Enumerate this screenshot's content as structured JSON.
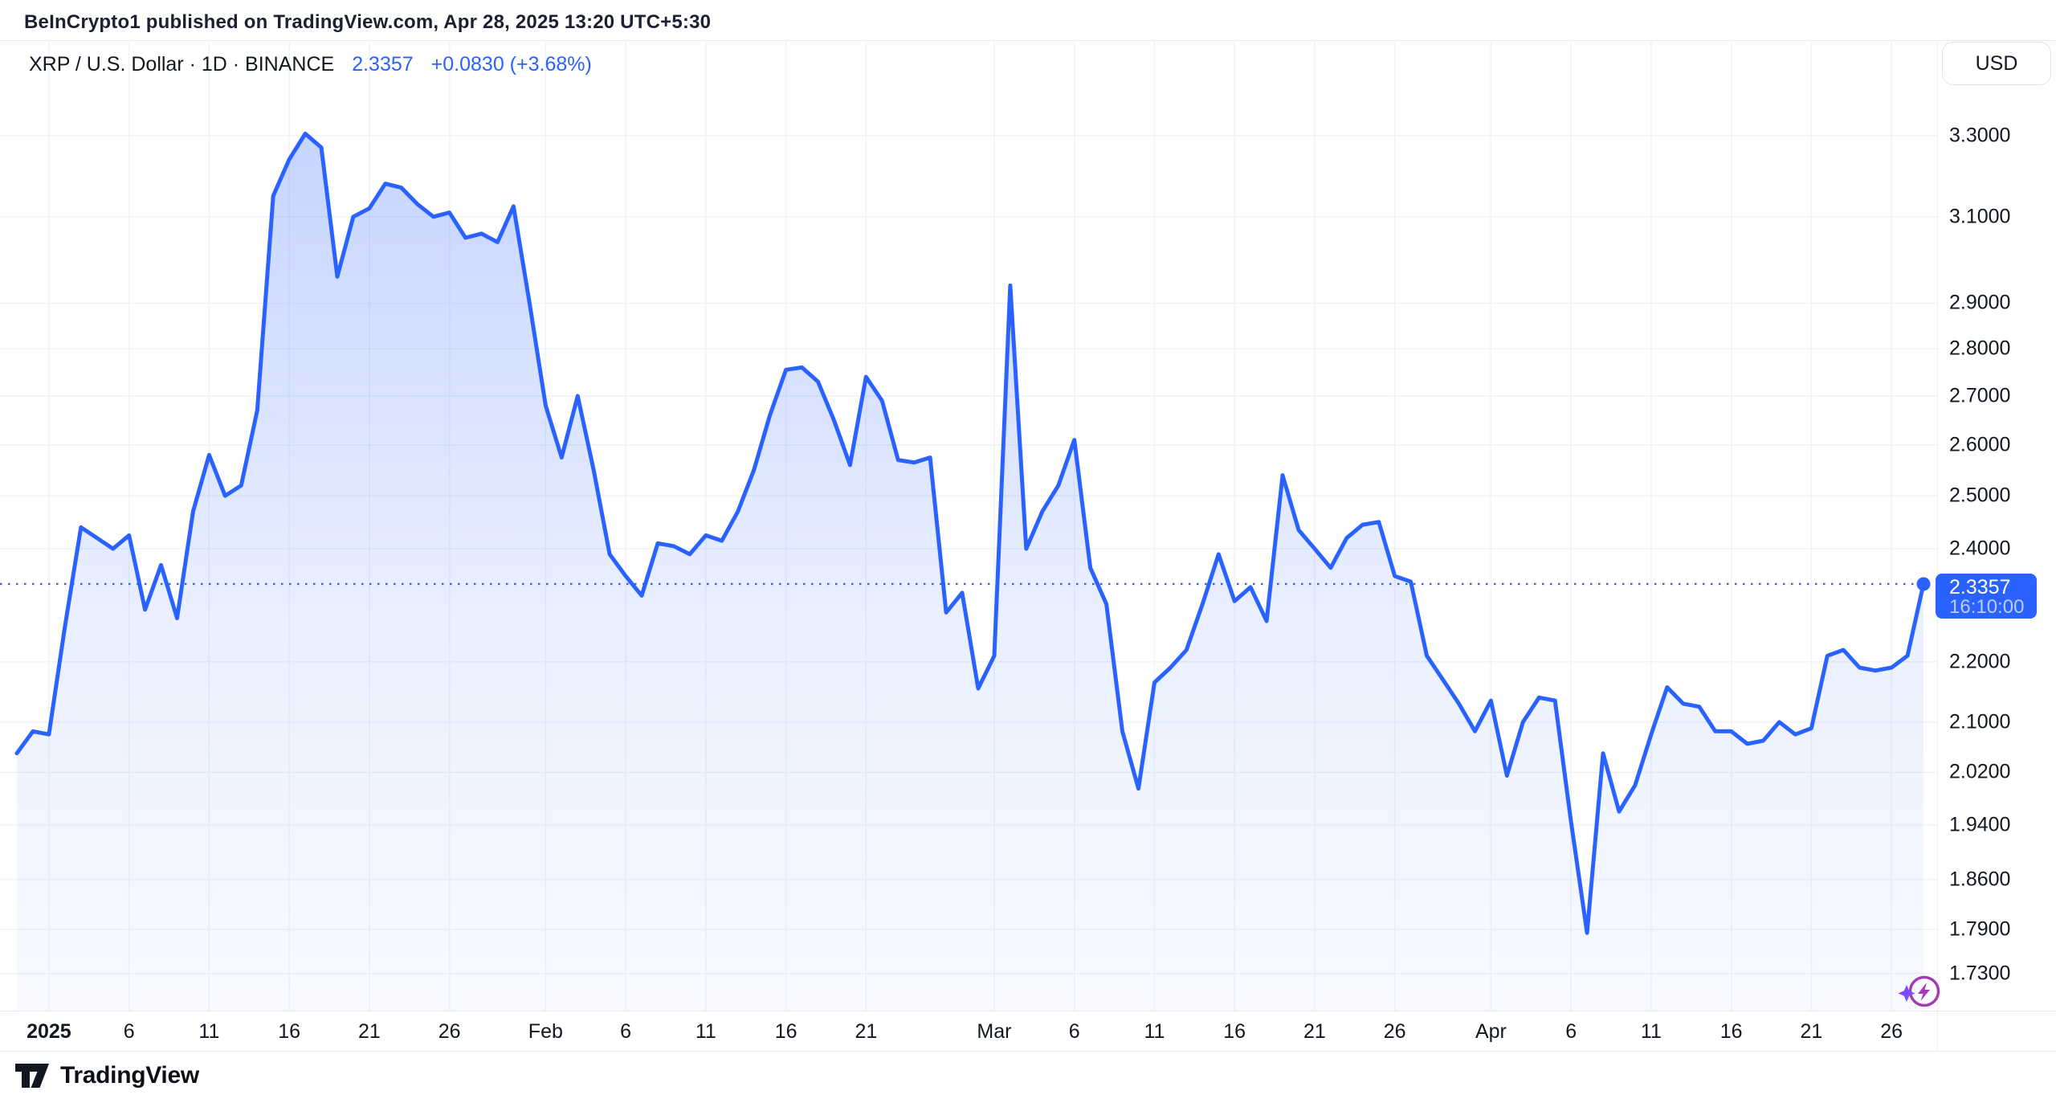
{
  "header": {
    "attribution": "BeInCrypto1 published on TradingView.com, Apr 28, 2025 13:20 UTC+5:30"
  },
  "symbol": {
    "line": "XRP / U.S. Dollar · 1D · BINANCE",
    "price": "2.3357",
    "change": "+0.0830 (+3.68%)"
  },
  "price_scale": {
    "currency": "USD",
    "badge": {
      "price": "2.3357",
      "time": "16:10:00"
    }
  },
  "footer": {
    "brand": "TradingView"
  },
  "colors": {
    "accent": "#2962FF",
    "text": "#131722",
    "grid": "#F0F3FA",
    "border": "#E0E3EB",
    "badge_bg": "#2962FF",
    "flash_purple": "#A43BB5",
    "flash_sparkle": "#7C4DFF"
  },
  "chart_data": {
    "type": "area",
    "title": "XRP / U.S. Dollar",
    "interval": "1D",
    "exchange": "BINANCE",
    "scale": "logarithmic",
    "grid": true,
    "legend_position": "none",
    "start_date": "2024-12-30",
    "frequency": "daily",
    "last_price": 2.3357,
    "last_time": "16:10:00",
    "change_abs": 0.083,
    "change_pct": 3.68,
    "ylim": [
      1.7,
      3.38
    ],
    "y_ticks": [
      {
        "label": "3.3000",
        "value": 3.3
      },
      {
        "label": "3.1000",
        "value": 3.1
      },
      {
        "label": "2.9000",
        "value": 2.9
      },
      {
        "label": "2.8000",
        "value": 2.8
      },
      {
        "label": "2.7000",
        "value": 2.7
      },
      {
        "label": "2.6000",
        "value": 2.6
      },
      {
        "label": "2.5000",
        "value": 2.5
      },
      {
        "label": "2.4000",
        "value": 2.4
      },
      {
        "label": "2.2000",
        "value": 2.2
      },
      {
        "label": "2.1000",
        "value": 2.1
      },
      {
        "label": "2.0200",
        "value": 2.02
      },
      {
        "label": "1.9400",
        "value": 1.94
      },
      {
        "label": "1.8600",
        "value": 1.86
      },
      {
        "label": "1.7900",
        "value": 1.79
      },
      {
        "label": "1.7300",
        "value": 1.73
      }
    ],
    "x_ticks": [
      {
        "label": "2025",
        "index": 2,
        "bold": true
      },
      {
        "label": "6",
        "index": 7
      },
      {
        "label": "11",
        "index": 12
      },
      {
        "label": "16",
        "index": 17
      },
      {
        "label": "21",
        "index": 22
      },
      {
        "label": "26",
        "index": 27
      },
      {
        "label": "Feb",
        "index": 33
      },
      {
        "label": "6",
        "index": 38
      },
      {
        "label": "11",
        "index": 43
      },
      {
        "label": "16",
        "index": 48
      },
      {
        "label": "21",
        "index": 53
      },
      {
        "label": "Mar",
        "index": 61
      },
      {
        "label": "6",
        "index": 66
      },
      {
        "label": "11",
        "index": 71
      },
      {
        "label": "16",
        "index": 76
      },
      {
        "label": "21",
        "index": 81
      },
      {
        "label": "26",
        "index": 86
      },
      {
        "label": "Apr",
        "index": 92
      },
      {
        "label": "6",
        "index": 97
      },
      {
        "label": "11",
        "index": 102
      },
      {
        "label": "16",
        "index": 107
      },
      {
        "label": "21",
        "index": 112
      },
      {
        "label": "26",
        "index": 117
      }
    ],
    "closes": [
      2.05,
      2.085,
      2.08,
      2.26,
      2.44,
      2.42,
      2.4,
      2.425,
      2.29,
      2.37,
      2.275,
      2.47,
      2.58,
      2.5,
      2.52,
      2.67,
      3.15,
      3.24,
      3.305,
      3.27,
      2.96,
      3.1,
      3.12,
      3.18,
      3.17,
      3.13,
      3.1,
      3.11,
      3.05,
      3.06,
      3.04,
      3.125,
      2.9,
      2.68,
      2.575,
      2.7,
      2.55,
      2.39,
      2.35,
      2.315,
      2.41,
      2.405,
      2.39,
      2.425,
      2.415,
      2.47,
      2.55,
      2.66,
      2.755,
      2.76,
      2.73,
      2.65,
      2.56,
      2.74,
      2.69,
      2.57,
      2.565,
      2.575,
      2.285,
      2.32,
      2.155,
      2.21,
      2.94,
      2.4,
      2.47,
      2.52,
      2.61,
      2.365,
      2.3,
      2.085,
      1.995,
      2.165,
      2.19,
      2.22,
      2.3,
      2.39,
      2.305,
      2.33,
      2.27,
      2.54,
      2.435,
      2.4,
      2.365,
      2.42,
      2.445,
      2.45,
      2.35,
      2.34,
      2.21,
      2.17,
      2.13,
      2.085,
      2.135,
      2.015,
      2.1,
      2.14,
      2.135,
      1.945,
      1.785,
      2.05,
      1.96,
      2.0,
      2.08,
      2.157,
      2.13,
      2.125,
      2.085,
      2.085,
      2.065,
      2.07,
      2.1,
      2.08,
      2.09,
      2.21,
      2.22,
      2.19,
      2.185,
      2.19,
      2.21,
      2.3357
    ]
  }
}
